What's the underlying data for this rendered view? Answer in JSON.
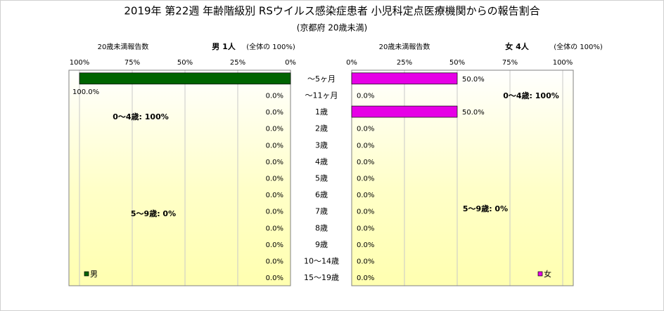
{
  "title": "2019年 第22週 年齢階級別 RSウイルス感染症患者 小児科定点医療機関からの報告割合",
  "subtitle": "(京都府 20歳未満)",
  "chart_data": [
    {
      "type": "bar",
      "orientation": "horizontal",
      "x_reversed": true,
      "header": "20歳未満報告数",
      "count_label": "男 1人",
      "share_label": "(全体の 100%)",
      "categories": [
        "～5ヶ月",
        "～11ヶ月",
        "1歳",
        "2歳",
        "3歳",
        "4歳",
        "5歳",
        "6歳",
        "7歳",
        "8歳",
        "9歳",
        "10～14歳",
        "15～19歳"
      ],
      "series": [
        {
          "name": "男",
          "color": "#006400",
          "values": [
            100,
            0,
            0,
            0,
            0,
            0,
            0,
            0,
            0,
            0,
            0,
            0,
            0
          ],
          "value_labels": [
            "100.0%",
            "0.0%",
            "0.0%",
            "0.0%",
            "0.0%",
            "0.0%",
            "0.0%",
            "0.0%",
            "0.0%",
            "0.0%",
            "0.0%",
            "0.0%",
            "0.0%"
          ]
        }
      ],
      "xlim": [
        0,
        105
      ],
      "xticks": [
        {
          "value": 0,
          "label": "0%"
        },
        {
          "value": 25,
          "label": "25%"
        },
        {
          "value": 50,
          "label": "50%"
        },
        {
          "value": 75,
          "label": "75%"
        },
        {
          "value": 100,
          "label": "100%"
        }
      ],
      "grid": true,
      "legend": "lower left",
      "annotations": [
        "0～4歳: 100%",
        "5～9歳: 0%"
      ]
    },
    {
      "type": "bar",
      "orientation": "horizontal",
      "x_reversed": false,
      "header": "20歳未満報告数",
      "count_label": "女 4人",
      "share_label": "(全体の 100%)",
      "series": [
        {
          "name": "女",
          "color": "#e600e6",
          "values": [
            50,
            0,
            50,
            0,
            0,
            0,
            0,
            0,
            0,
            0,
            0,
            0,
            0
          ],
          "value_labels": [
            "50.0%",
            "0.0%",
            "50.0%",
            "0.0%",
            "0.0%",
            "0.0%",
            "0.0%",
            "0.0%",
            "0.0%",
            "0.0%",
            "0.0%",
            "0.0%",
            "0.0%"
          ]
        }
      ],
      "xlim": [
        0,
        105
      ],
      "xticks": [
        {
          "value": 0,
          "label": "0%"
        },
        {
          "value": 25,
          "label": "25%"
        },
        {
          "value": 50,
          "label": "50%"
        },
        {
          "value": 75,
          "label": "75%"
        },
        {
          "value": 100,
          "label": "100%"
        }
      ],
      "grid": true,
      "legend": "lower right",
      "annotations": [
        "0～4歳: 100%",
        "5～9歳: 0%"
      ]
    }
  ]
}
